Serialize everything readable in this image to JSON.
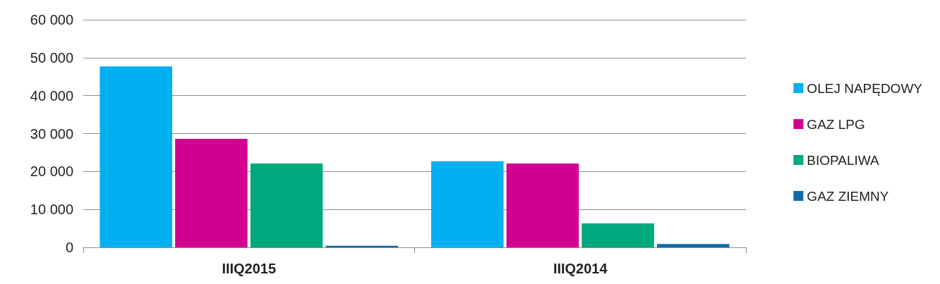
{
  "chart_data": {
    "type": "bar",
    "categories": [
      "IIIQ2015",
      "IIIQ2014"
    ],
    "series": [
      {
        "name": "OLEJ NAPĘDOWY",
        "color": "#00b0f0",
        "values": [
          47700,
          22700
        ]
      },
      {
        "name": "GAZ LPG",
        "color": "#d2008f",
        "values": [
          28600,
          22100
        ]
      },
      {
        "name": "BIOPALIWA",
        "color": "#00a87e",
        "values": [
          22100,
          6300
        ]
      },
      {
        "name": "GAZ ZIEMNY",
        "color": "#0e6ba8",
        "values": [
          400,
          900
        ]
      }
    ],
    "ylim": [
      0,
      60000
    ],
    "yticks": [
      {
        "value": 0,
        "label": "0"
      },
      {
        "value": 10000,
        "label": "10 000"
      },
      {
        "value": 20000,
        "label": "20 000"
      },
      {
        "value": 30000,
        "label": "30 000"
      },
      {
        "value": 40000,
        "label": "40 000"
      },
      {
        "value": 50000,
        "label": "50 000"
      },
      {
        "value": 60000,
        "label": "60 000"
      }
    ],
    "grid": "y",
    "legend": "right"
  }
}
